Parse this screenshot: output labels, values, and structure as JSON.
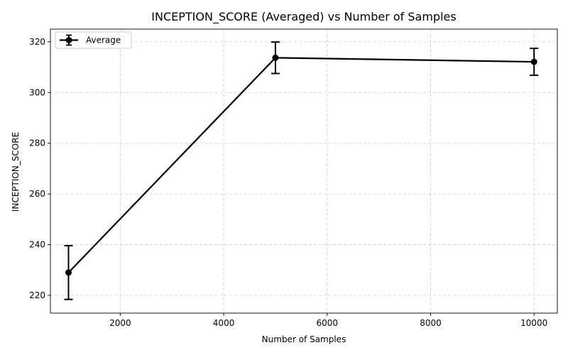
{
  "chart_data": {
    "type": "line",
    "title": "INCEPTION_SCORE (Averaged) vs Number of Samples",
    "xlabel": "Number of Samples",
    "ylabel": "INCEPTION_SCORE",
    "xlim": [
      650,
      10450
    ],
    "ylim": [
      213,
      325
    ],
    "x_ticks": [
      2000,
      4000,
      6000,
      8000,
      10000
    ],
    "y_ticks": [
      220,
      240,
      260,
      280,
      300,
      320
    ],
    "grid": true,
    "legend_position": "top-left",
    "series": [
      {
        "name": "Average",
        "color": "#000000",
        "x": [
          1000,
          5000,
          10000
        ],
        "y": [
          229.0,
          313.7,
          312.1
        ],
        "yerr": [
          10.6,
          6.2,
          5.3
        ]
      }
    ]
  }
}
